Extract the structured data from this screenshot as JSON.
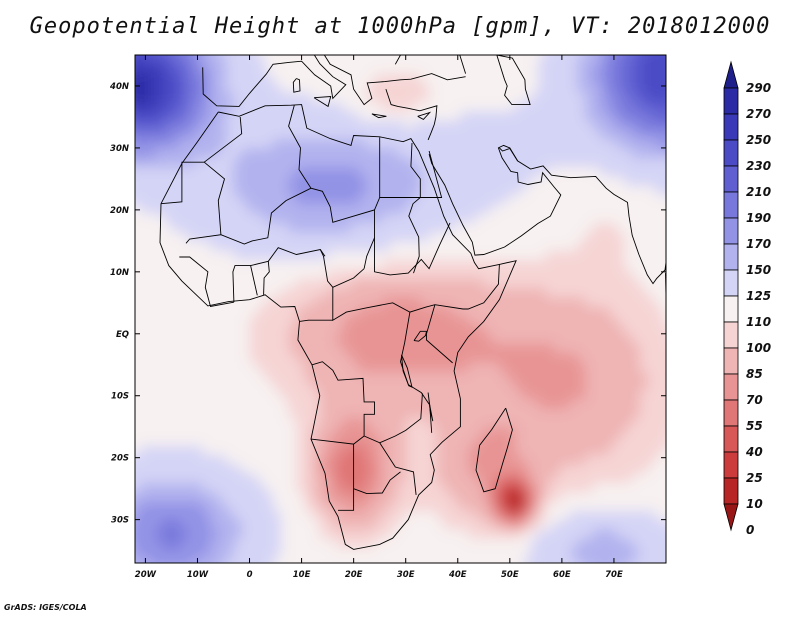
{
  "chart_data": {
    "type": "heatmap",
    "title": "Geopotential Height at 1000hPa [gpm], VT: 2018012000",
    "variable": "Geopotential Height at 1000hPa",
    "units": "gpm",
    "valid_time": "2018012000",
    "xlim": [
      -22,
      80
    ],
    "ylim": [
      -37,
      45
    ],
    "x_ticks": [
      {
        "value": -20,
        "label": "20W"
      },
      {
        "value": -10,
        "label": "10W"
      },
      {
        "value": 0,
        "label": "0"
      },
      {
        "value": 10,
        "label": "10E"
      },
      {
        "value": 20,
        "label": "20E"
      },
      {
        "value": 30,
        "label": "30E"
      },
      {
        "value": 40,
        "label": "40E"
      },
      {
        "value": 50,
        "label": "50E"
      },
      {
        "value": 60,
        "label": "60E"
      },
      {
        "value": 70,
        "label": "70E"
      }
    ],
    "y_ticks": [
      {
        "value": 40,
        "label": "40N"
      },
      {
        "value": 30,
        "label": "30N"
      },
      {
        "value": 20,
        "label": "20N"
      },
      {
        "value": 10,
        "label": "10N"
      },
      {
        "value": 0,
        "label": "EQ"
      },
      {
        "value": -10,
        "label": "10S"
      },
      {
        "value": -20,
        "label": "20S"
      },
      {
        "value": -30,
        "label": "30S"
      }
    ],
    "colorbar": {
      "levels": [
        290,
        270,
        250,
        230,
        210,
        190,
        170,
        150,
        125,
        110,
        100,
        85,
        70,
        55,
        40,
        25,
        10,
        0
      ],
      "labels": [
        "290",
        "270",
        "250",
        "230",
        "210",
        "190",
        "170",
        "150",
        "125",
        "110",
        "100",
        "85",
        "70",
        "55",
        "40",
        "25",
        "10",
        "0"
      ],
      "colors": [
        "#1f1f8c",
        "#2b2ba6",
        "#3a3ab8",
        "#4b4bc6",
        "#5f5fd2",
        "#7777dc",
        "#9393e6",
        "#b2b2ef",
        "#d4d4f6",
        "#f7f1f1",
        "#f6d4d4",
        "#efb4b4",
        "#e89494",
        "#e07676",
        "#d85858",
        "#cc3c3c",
        "#b82626",
        "#981616"
      ]
    },
    "field_features": [
      {
        "name": "south-indian-ocean-low",
        "lon": 51,
        "lat": -27,
        "value": 5
      },
      {
        "name": "kalahari-low",
        "lon": 20,
        "lat": -22,
        "value": 60
      },
      {
        "name": "central-africa-trough",
        "lon": 28,
        "lat": 0,
        "value": 78
      },
      {
        "name": "sahara-high",
        "lon": 15,
        "lat": 23,
        "value": 175
      },
      {
        "name": "atlantic-high",
        "lon": -20,
        "lat": 38,
        "value": 270
      },
      {
        "name": "siberian-ridge",
        "lon": 78,
        "lat": 40,
        "value": 250
      },
      {
        "name": "south-atlantic-high",
        "lon": -15,
        "lat": -30,
        "value": 190
      }
    ]
  },
  "footer": {
    "credit": "GrADS: IGES/COLA"
  }
}
